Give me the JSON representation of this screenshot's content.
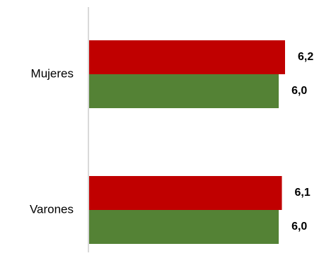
{
  "chart_data": {
    "type": "bar",
    "orientation": "horizontal",
    "categories": [
      "Mujeres",
      "Varones"
    ],
    "series": [
      {
        "values": [
          6.2,
          6.1
        ],
        "color": "#c00000",
        "labels": [
          "6,2",
          "6,1"
        ]
      },
      {
        "values": [
          6.0,
          6.0
        ],
        "color": "#548235",
        "labels": [
          "6,0",
          "6,0"
        ]
      }
    ],
    "xlim": [
      0,
      10
    ],
    "grid": false,
    "legend": "none",
    "axis_color": "#d9d9d9"
  }
}
